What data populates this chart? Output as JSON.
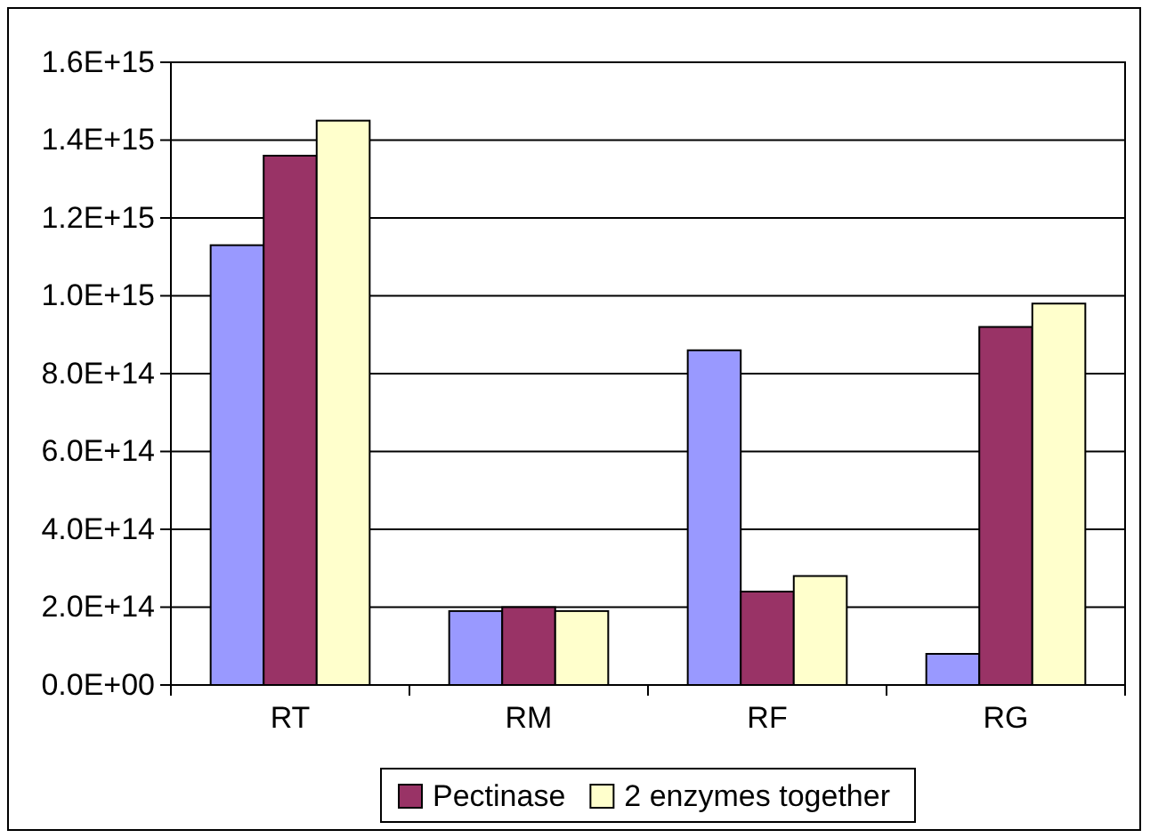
{
  "chart_data": {
    "type": "bar",
    "categories": [
      "RT",
      "RM",
      "RF",
      "RG"
    ],
    "series": [
      {
        "color": "#9999ff",
        "values": [
          1130000000000000.0,
          190000000000000.0,
          860000000000000.0,
          80000000000000.0
        ]
      },
      {
        "name": "Pectinase",
        "color": "#993366",
        "values": [
          1360000000000000.0,
          200000000000000.0,
          240000000000000.0,
          920000000000000.0
        ]
      },
      {
        "name": "2 enzymes together",
        "color": "#ffffcc",
        "values": [
          1450000000000000.0,
          190000000000000.0,
          280000000000000.0,
          980000000000000.0
        ]
      }
    ],
    "ylim": [
      0,
      1600000000000000.0
    ],
    "yticks": [
      {
        "value": 0,
        "label": "0.0E+00"
      },
      {
        "value": 200000000000000.0,
        "label": "2.0E+14"
      },
      {
        "value": 400000000000000.0,
        "label": "4.0E+14"
      },
      {
        "value": 600000000000000.0,
        "label": "6.0E+14"
      },
      {
        "value": 800000000000000.0,
        "label": "8.0E+14"
      },
      {
        "value": 1000000000000000.0,
        "label": "1.0E+15"
      },
      {
        "value": 1200000000000000.0,
        "label": "1.2E+15"
      },
      {
        "value": 1400000000000000.0,
        "label": "1.4E+15"
      },
      {
        "value": 1600000000000000.0,
        "label": "1.6E+15"
      }
    ],
    "grid": "y",
    "legend": "bottom"
  }
}
